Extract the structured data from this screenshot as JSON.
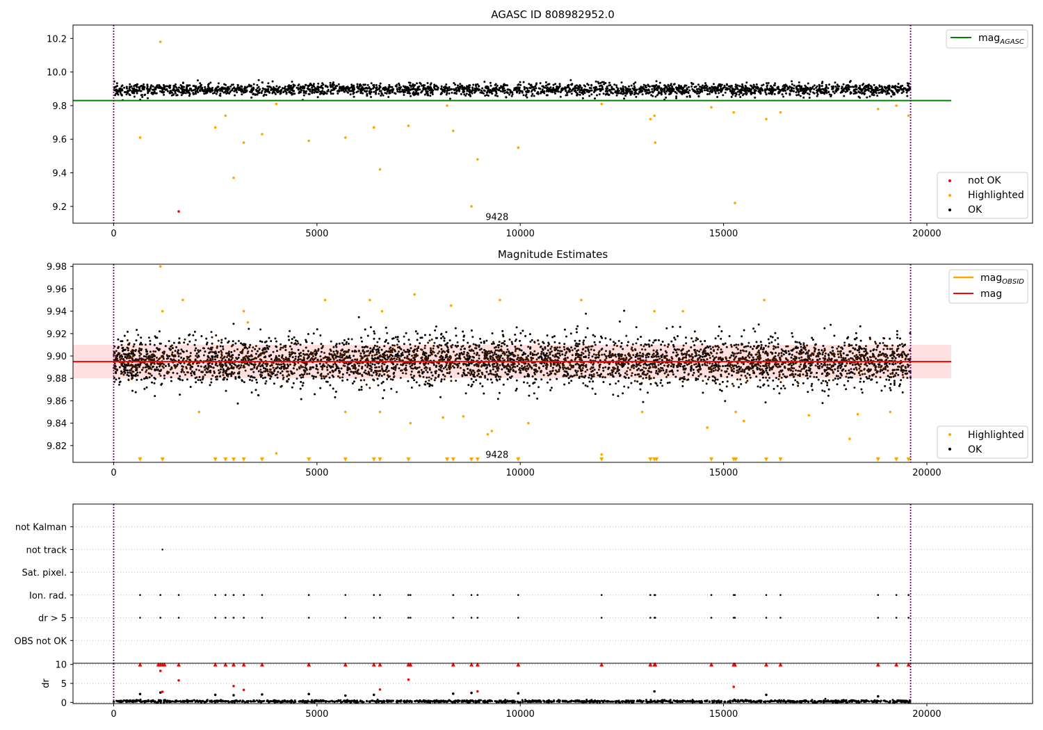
{
  "chart_data": [
    {
      "type": "scatter",
      "title": "AGASC ID 808982952.0",
      "xlim": [
        -1000,
        22600
      ],
      "ylim": [
        9.1,
        10.28
      ],
      "xticks": [
        0,
        5000,
        10000,
        15000,
        20000
      ],
      "yticks": [
        9.2,
        9.4,
        9.6,
        9.8,
        10.0,
        10.2
      ],
      "ytick_labels": [
        "9.2",
        "9.4",
        "9.6",
        "9.8",
        "10.0",
        "10.2"
      ],
      "xtick_labels": [
        "0",
        "5000",
        "10000",
        "15000",
        "20000"
      ],
      "vlines": [
        0,
        19600
      ],
      "annotation": {
        "text": "9428",
        "x": 9428,
        "y": 9.14
      },
      "lines": [
        {
          "name": "mag_AGASC",
          "y": 9.83,
          "x_range": [
            -1000,
            20600
          ],
          "color": "#008000"
        }
      ],
      "legends": [
        {
          "position": "top-right",
          "entries": [
            {
              "label": "mag",
              "sub": "AGASC",
              "marker": "line",
              "color": "#008000"
            }
          ]
        },
        {
          "position": "lower-right",
          "entries": [
            {
              "label": "not OK",
              "marker": "dot",
              "color": "#ff0000"
            },
            {
              "label": "Highlighted",
              "marker": "dot",
              "color": "#ffa500"
            },
            {
              "label": "OK",
              "marker": "dot",
              "color": "#000000"
            }
          ]
        }
      ],
      "series": [
        {
          "name": "OK",
          "color": "#000000",
          "x_range": [
            0,
            19600
          ],
          "y_center": 9.895,
          "y_spread": 0.018
        },
        {
          "name": "Highlighted",
          "color": "#ffa500",
          "x": [
            1150,
            650,
            2500,
            2750,
            2950,
            3200,
            3650,
            4000,
            4800,
            5700,
            6400,
            6550,
            7250,
            8200,
            8350,
            8800,
            8950,
            9950,
            12000,
            13200,
            13300,
            13320,
            14700,
            15250,
            15280,
            16050,
            16400,
            18800,
            19250,
            19550
          ],
          "y": [
            10.18,
            9.61,
            9.67,
            9.74,
            9.37,
            9.58,
            9.63,
            9.81,
            9.59,
            9.61,
            9.67,
            9.42,
            9.68,
            9.8,
            9.65,
            9.2,
            9.48,
            9.55,
            9.81,
            9.72,
            9.74,
            9.58,
            9.79,
            9.76,
            9.22,
            9.72,
            9.76,
            9.78,
            9.8,
            9.74
          ]
        },
        {
          "name": "not OK",
          "color": "#ff0000",
          "x": [
            1600
          ],
          "y": [
            9.17
          ]
        }
      ]
    },
    {
      "type": "scatter",
      "title": "Magnitude Estimates",
      "xlim": [
        -1000,
        22600
      ],
      "ylim": [
        9.805,
        9.982
      ],
      "xticks": [
        0,
        5000,
        10000,
        15000,
        20000
      ],
      "xtick_labels": [
        "0",
        "5000",
        "10000",
        "15000",
        "20000"
      ],
      "yticks": [
        9.82,
        9.84,
        9.86,
        9.88,
        9.9,
        9.92,
        9.94,
        9.96,
        9.98
      ],
      "ytick_labels": [
        "9.82",
        "9.84",
        "9.86",
        "9.88",
        "9.90",
        "9.92",
        "9.94",
        "9.96",
        "9.98"
      ],
      "vlines": [
        0,
        19600
      ],
      "annotation": {
        "text": "9428",
        "x": 9428,
        "y": 9.812
      },
      "band": {
        "y_range": [
          9.88,
          9.91
        ],
        "x_range": [
          -1000,
          20600
        ],
        "color": "#ffcccc"
      },
      "lines": [
        {
          "name": "mag",
          "y": 9.895,
          "x_range": [
            -1000,
            20600
          ],
          "color": "#ff0000"
        }
      ],
      "legends": [
        {
          "position": "top-right",
          "entries": [
            {
              "label": "mag",
              "sub": "OBSID",
              "marker": "line",
              "color": "#ffa500"
            },
            {
              "label": "mag",
              "marker": "line",
              "color": "#ff0000"
            }
          ]
        },
        {
          "position": "lower-right",
          "entries": [
            {
              "label": "Highlighted",
              "marker": "dot",
              "color": "#ffa500"
            },
            {
              "label": "OK",
              "marker": "dot",
              "color": "#000000"
            }
          ]
        }
      ],
      "series": [
        {
          "name": "OK",
          "color": "#000000",
          "x_range": [
            0,
            19600
          ],
          "y_center": 9.895,
          "y_spread": 0.012
        },
        {
          "name": "mag_OBSID",
          "color": "#3a1500",
          "x_range": [
            0,
            19600
          ],
          "y_center": 9.895,
          "y_spread": 0.008
        },
        {
          "name": "Highlighted",
          "color": "#ffa500",
          "x": [
            1150,
            1200,
            1700,
            2100,
            3200,
            3300,
            4000,
            5200,
            5700,
            6300,
            6550,
            6600,
            7300,
            7400,
            8100,
            8300,
            8600,
            9200,
            9300,
            9500,
            10200,
            11500,
            12000,
            13000,
            13300,
            14000,
            14600,
            15300,
            15500,
            16000,
            17100,
            18100,
            18300,
            19100
          ],
          "y": [
            9.98,
            9.94,
            9.95,
            9.85,
            9.94,
            9.93,
            9.813,
            9.95,
            9.85,
            9.95,
            9.85,
            9.94,
            9.84,
            9.955,
            9.845,
            9.945,
            9.846,
            9.83,
            9.833,
            9.95,
            9.84,
            9.95,
            9.812,
            9.85,
            9.94,
            9.94,
            9.836,
            9.85,
            9.842,
            9.95,
            9.847,
            9.826,
            9.848,
            9.85
          ]
        },
        {
          "name": "below-range",
          "color": "#ffa500",
          "marker": "triangle-down",
          "x": [
            650,
            1200,
            2500,
            2750,
            2950,
            3200,
            3650,
            4800,
            5700,
            6400,
            6550,
            7250,
            8200,
            8350,
            8800,
            8950,
            9950,
            12000,
            13200,
            13300,
            13350,
            14700,
            15250,
            15300,
            16050,
            16400,
            18800,
            19250,
            19550
          ],
          "y": [
            9.8075,
            9.8075,
            9.8075,
            9.8075,
            9.8075,
            9.8075,
            9.8075,
            9.8075,
            9.8075,
            9.8075,
            9.8075,
            9.8075,
            9.8075,
            9.8075,
            9.8075,
            9.8075,
            9.8075,
            9.8075,
            9.8075,
            9.8075,
            9.8075,
            9.8075,
            9.8075,
            9.8075,
            9.8075,
            9.8075,
            9.8075,
            9.8075,
            9.8075
          ]
        }
      ]
    },
    {
      "type": "scatter",
      "title": "",
      "xlim": [
        -1000,
        22600
      ],
      "category_rows": [
        "not Kalman",
        "not track",
        "Sat. pixel.",
        "Ion. rad.",
        "dr > 5",
        "OBS not OK"
      ],
      "vlines": [
        0,
        19600
      ],
      "series": [
        {
          "name": "not track",
          "color": "#000000",
          "x": [
            1200
          ],
          "y": [
            "not track"
          ]
        },
        {
          "name": "Ion. rad.",
          "color": "#000000",
          "x": [
            650,
            1150,
            1600,
            2500,
            2750,
            2950,
            3200,
            3650,
            4800,
            5700,
            6400,
            6550,
            7250,
            7300,
            8350,
            8800,
            8950,
            9950,
            12000,
            13200,
            13300,
            13320,
            14700,
            15250,
            15280,
            16050,
            16400,
            18800,
            19250,
            19550
          ],
          "y": [
            "Ion. rad.",
            "Ion. rad.",
            "Ion. rad.",
            "Ion. rad.",
            "Ion. rad.",
            "Ion. rad.",
            "Ion. rad.",
            "Ion. rad.",
            "Ion. rad.",
            "Ion. rad.",
            "Ion. rad.",
            "Ion. rad.",
            "Ion. rad.",
            "Ion. rad.",
            "Ion. rad.",
            "Ion. rad.",
            "Ion. rad.",
            "Ion. rad.",
            "Ion. rad.",
            "Ion. rad.",
            "Ion. rad.",
            "Ion. rad.",
            "Ion. rad.",
            "Ion. rad.",
            "Ion. rad.",
            "Ion. rad.",
            "Ion. rad.",
            "Ion. rad.",
            "Ion. rad.",
            "Ion. rad."
          ]
        },
        {
          "name": "dr > 5",
          "color": "#000000",
          "x": [
            650,
            1150,
            1600,
            2500,
            2750,
            2950,
            3200,
            3650,
            4800,
            5700,
            6400,
            6550,
            7250,
            7300,
            8350,
            8800,
            8950,
            9950,
            12000,
            13200,
            13300,
            13320,
            14700,
            15250,
            15280,
            16050,
            16400,
            18800,
            19250,
            19550
          ],
          "y": [
            "dr > 5",
            "dr > 5",
            "dr > 5",
            "dr > 5",
            "dr > 5",
            "dr > 5",
            "dr > 5",
            "dr > 5",
            "dr > 5",
            "dr > 5",
            "dr > 5",
            "dr > 5",
            "dr > 5",
            "dr > 5",
            "dr > 5",
            "dr > 5",
            "dr > 5",
            "dr > 5",
            "dr > 5",
            "dr > 5",
            "dr > 5",
            "dr > 5",
            "dr > 5",
            "dr > 5",
            "dr > 5",
            "dr > 5",
            "dr > 5",
            "dr > 5",
            "dr > 5",
            "dr > 5"
          ]
        }
      ]
    },
    {
      "type": "scatter",
      "title": "",
      "ylabel": "dr",
      "xlim": [
        -1000,
        22600
      ],
      "ylim": [
        -0.3,
        10.3
      ],
      "xticks": [
        0,
        5000,
        10000,
        15000,
        20000
      ],
      "xtick_labels": [
        "0",
        "5000",
        "10000",
        "15000",
        "20000"
      ],
      "yticks": [
        0,
        5,
        10
      ],
      "ytick_labels": [
        "0",
        "5",
        "10"
      ],
      "vlines": [
        0,
        19600
      ],
      "series": [
        {
          "name": "dr",
          "color": "#000000",
          "x_range": [
            0,
            19600
          ],
          "y_center": 0.3,
          "y_spread": 0.15
        },
        {
          "name": "dr-high",
          "color": "#000000",
          "x": [
            650,
            1150,
            2500,
            2950,
            3650,
            4800,
            5700,
            6400,
            8350,
            8800,
            9950,
            13300,
            16050,
            18800
          ],
          "y": [
            2.2,
            2.6,
            2.0,
            1.9,
            2.1,
            2.2,
            1.8,
            2.0,
            2.3,
            2.5,
            2.4,
            2.9,
            2.0,
            1.6
          ]
        },
        {
          "name": "dr-flagged",
          "color": "#ff0000",
          "x": [
            1150,
            1200,
            1600,
            2950,
            3200,
            6550,
            7250,
            8950,
            15250
          ],
          "y": [
            8.3,
            2.8,
            5.8,
            4.3,
            3.3,
            3.4,
            6.0,
            2.9,
            4.1
          ]
        },
        {
          "name": "dr-clipped",
          "color": "#ff0000",
          "marker": "triangle-up",
          "x": [
            650,
            1100,
            1150,
            1200,
            1250,
            1600,
            2500,
            2750,
            2950,
            3200,
            3650,
            4800,
            5700,
            6400,
            6550,
            7250,
            7300,
            8350,
            8800,
            8950,
            9950,
            12000,
            13200,
            13300,
            13320,
            14700,
            15250,
            15280,
            16050,
            16400,
            18800,
            19250,
            19550
          ],
          "y": [
            10,
            10,
            10,
            10,
            10,
            10,
            10,
            10,
            10,
            10,
            10,
            10,
            10,
            10,
            10,
            10,
            10,
            10,
            10,
            10,
            10,
            10,
            10,
            10,
            10,
            10,
            10,
            10,
            10,
            10,
            10,
            10,
            10
          ]
        }
      ]
    }
  ]
}
